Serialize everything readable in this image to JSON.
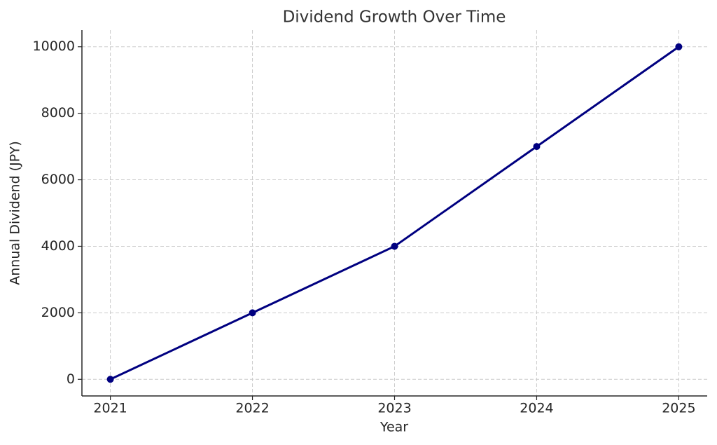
{
  "chart_data": {
    "type": "line",
    "title": "Dividend Growth Over Time",
    "x_label": "Year",
    "y_label": "Annual Dividend (JPY)",
    "x": [
      2021,
      2022,
      2023,
      2024,
      2025
    ],
    "series": [
      {
        "name": "Annual Dividend",
        "color": "#000080",
        "values": [
          0,
          2000,
          4000,
          7000,
          10000
        ]
      }
    ],
    "xlim": [
      2020.8,
      2025.2
    ],
    "xticks": [
      2021,
      2022,
      2023,
      2024,
      2025
    ],
    "ylim": [
      -500,
      10500
    ],
    "yticks": [
      0,
      2000,
      4000,
      6000,
      8000,
      10000
    ],
    "grid": true
  }
}
